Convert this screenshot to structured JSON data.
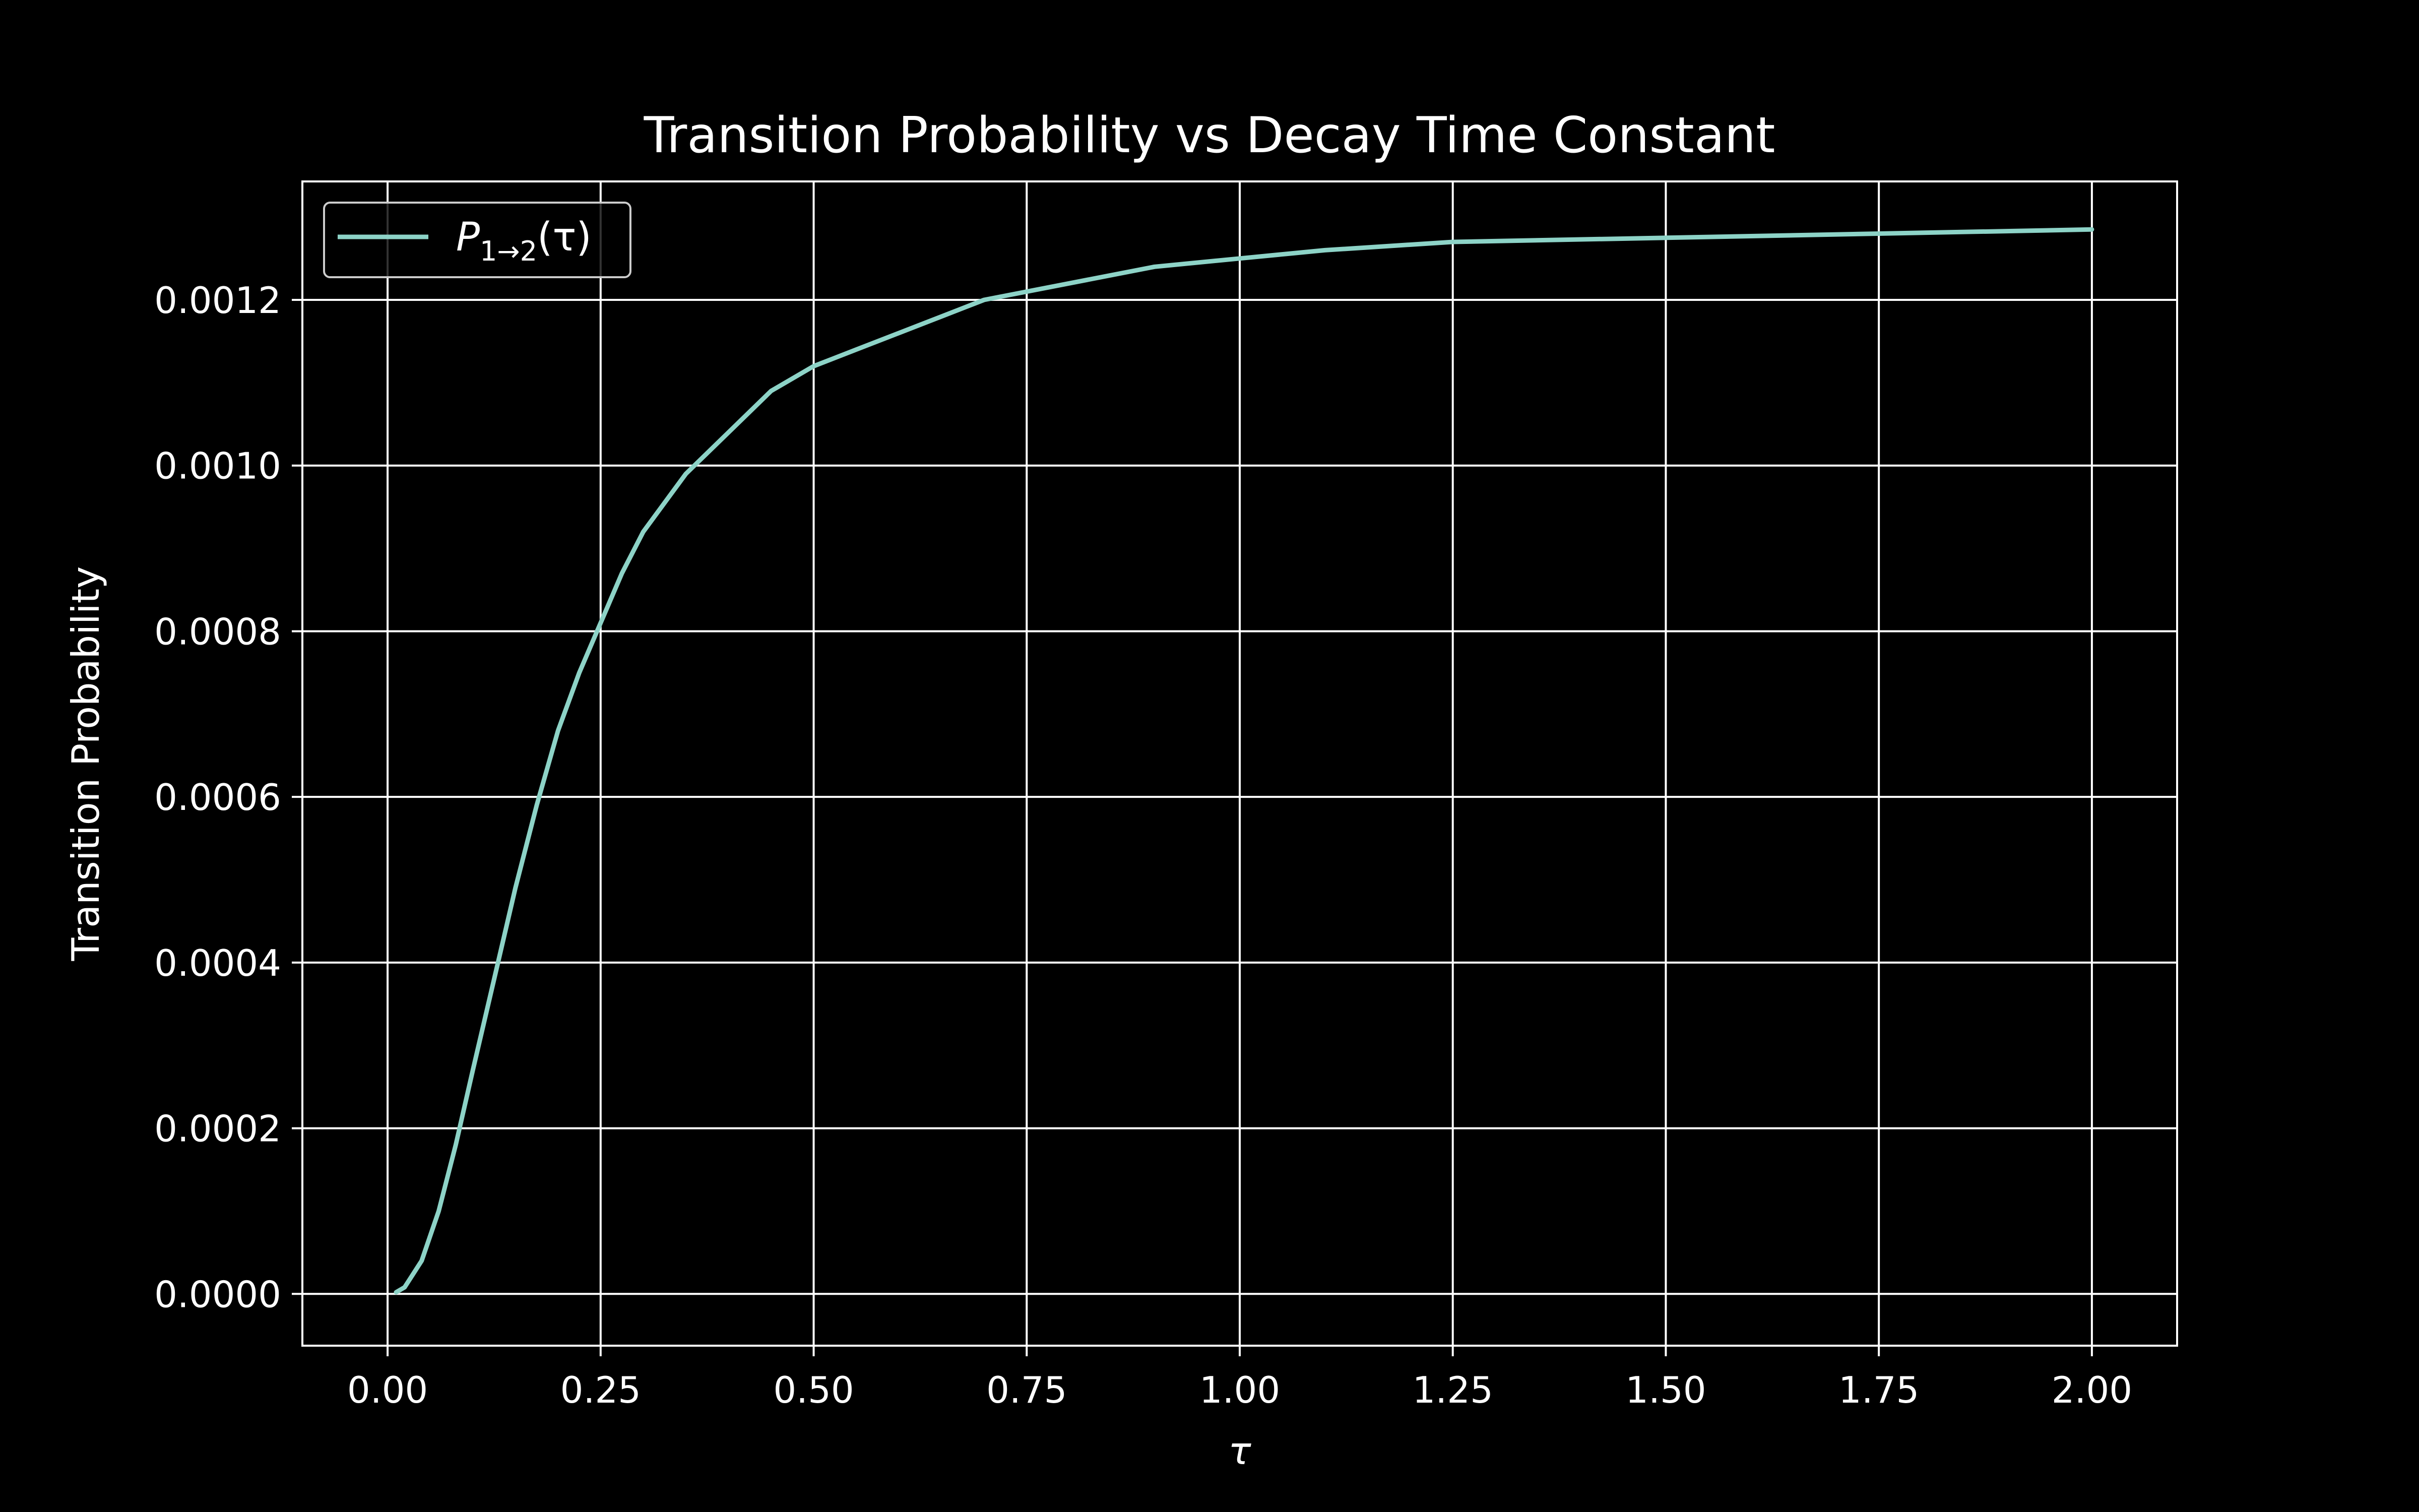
{
  "chart_data": {
    "type": "line",
    "title": "Transition Probability vs Decay Time Constant",
    "xlabel": "τ",
    "ylabel": "Transition Probability",
    "xlim": [
      -0.1,
      2.1
    ],
    "ylim": [
      -6.25e-05,
      0.001343
    ],
    "xticks": [
      0.0,
      0.25,
      0.5,
      0.75,
      1.0,
      1.25,
      1.5,
      1.75,
      2.0
    ],
    "xtick_labels": [
      "0.00",
      "0.25",
      "0.50",
      "0.75",
      "1.00",
      "1.25",
      "1.50",
      "1.75",
      "2.00"
    ],
    "yticks": [
      0.0,
      0.0002,
      0.0004,
      0.0006,
      0.0008,
      0.001,
      0.0012
    ],
    "ytick_labels": [
      "0.0000",
      "0.0002",
      "0.0004",
      "0.0006",
      "0.0008",
      "0.0010",
      "0.0012"
    ],
    "grid": true,
    "legend_position": "top-left",
    "background_color": "#000000",
    "foreground_color": "#ffffff",
    "series": [
      {
        "name": "P_{1→2}(τ)",
        "legend": {
          "base": "P",
          "sub": "1→2",
          "arg": "(τ)"
        },
        "color": "#8dd3c7",
        "x": [
          0.01,
          0.02,
          0.04,
          0.06,
          0.08,
          0.1,
          0.125,
          0.15,
          0.175,
          0.2,
          0.225,
          0.25,
          0.275,
          0.3,
          0.35,
          0.4,
          0.45,
          0.5,
          0.55,
          0.6,
          0.65,
          0.7,
          0.75,
          0.8,
          0.9,
          1.0,
          1.1,
          1.25,
          1.5,
          1.75,
          2.0
        ],
        "y": [
          2e-06,
          8e-06,
          4e-05,
          0.0001,
          0.00018,
          0.00027,
          0.00038,
          0.00049,
          0.00059,
          0.00068,
          0.00075,
          0.00081,
          0.00087,
          0.00092,
          0.00099,
          0.00104,
          0.00109,
          0.00112,
          0.00114,
          0.00116,
          0.00118,
          0.0012,
          0.00121,
          0.00122,
          0.00124,
          0.00125,
          0.00126,
          0.00127,
          0.001275,
          0.00128,
          0.001285
        ]
      }
    ]
  }
}
